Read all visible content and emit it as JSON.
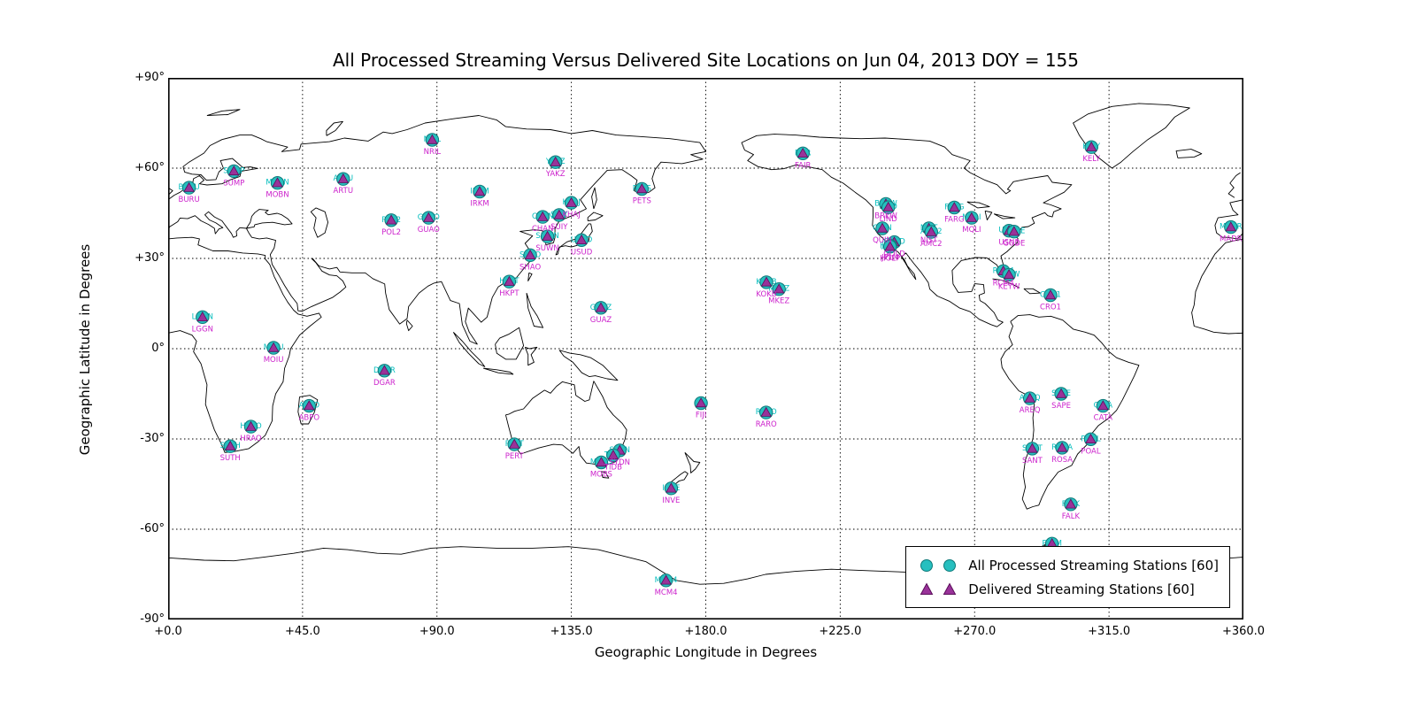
{
  "chart_data": {
    "type": "scatter",
    "title": "All Processed Streaming Versus Delivered Site Locations on Jun 04, 2013 DOY = 155",
    "xlabel": "Geographic Longitude in Degrees",
    "ylabel": "Geographic Latitude in Degrees",
    "xlim": [
      0,
      360
    ],
    "ylim": [
      -90,
      90
    ],
    "grid": "dotted",
    "xticks": {
      "values": [
        0,
        45,
        90,
        135,
        180,
        225,
        270,
        315,
        360
      ],
      "labels": [
        "+0.0",
        "+45.0",
        "+90.0",
        "+135.0",
        "+180.0",
        "+225.0",
        "+270.0",
        "+315.0",
        "+360.0"
      ]
    },
    "yticks": {
      "values": [
        90,
        60,
        30,
        0,
        -30,
        -60,
        -90
      ],
      "labels": [
        "+90°",
        "+60°",
        "+30°",
        "0°",
        "-30°",
        "-60°",
        "-90°"
      ]
    },
    "colors": {
      "circle_fill": "#27bfbf",
      "circle_edge": "#0e7a7a",
      "triangle_fill": "#993299",
      "triangle_edge": "#5a0e5a",
      "label_top": "#00bdbd",
      "label_bottom": "#cc22cc",
      "coastline": "#000000"
    },
    "legend": {
      "position": "lower right",
      "items": [
        {
          "label": "All Processed Streaming Stations [60]",
          "marker": "circle",
          "color": "#27bfbf"
        },
        {
          "label": "Delivered Streaming Stations [60]",
          "marker": "triangle",
          "color": "#993299"
        }
      ]
    },
    "stations": [
      {
        "name": "BURU",
        "lon": 7.0,
        "lat": 53.5
      },
      {
        "name": "SUMP",
        "lon": 22.0,
        "lat": 59.0
      },
      {
        "name": "MOBN",
        "lon": 36.6,
        "lat": 55.1
      },
      {
        "name": "ARTU",
        "lon": 58.6,
        "lat": 56.4
      },
      {
        "name": "NRIL",
        "lon": 88.4,
        "lat": 69.4
      },
      {
        "name": "POL2",
        "lon": 74.7,
        "lat": 42.7
      },
      {
        "name": "GUAO",
        "lon": 87.2,
        "lat": 43.5
      },
      {
        "name": "IRKM",
        "lon": 104.3,
        "lat": 52.2
      },
      {
        "name": "YAKZ",
        "lon": 129.7,
        "lat": 62.0
      },
      {
        "name": "PETS",
        "lon": 158.6,
        "lat": 53.1
      },
      {
        "name": "KHAJ",
        "lon": 135.0,
        "lat": 48.5
      },
      {
        "name": "CHAN",
        "lon": 125.4,
        "lat": 43.8
      },
      {
        "name": "SUIY",
        "lon": 130.9,
        "lat": 44.4
      },
      {
        "name": "SUWN",
        "lon": 127.0,
        "lat": 37.3
      },
      {
        "name": "USUD",
        "lon": 138.4,
        "lat": 36.1
      },
      {
        "name": "SHAO",
        "lon": 121.2,
        "lat": 31.1
      },
      {
        "name": "HKPT",
        "lon": 114.2,
        "lat": 22.3
      },
      {
        "name": "GUAZ",
        "lon": 144.9,
        "lat": 13.6
      },
      {
        "name": "LGGN",
        "lon": 11.5,
        "lat": 10.5
      },
      {
        "name": "MOIU",
        "lon": 35.3,
        "lat": 0.3
      },
      {
        "name": "DGAR",
        "lon": 72.4,
        "lat": -7.3
      },
      {
        "name": "ABPO",
        "lon": 47.2,
        "lat": -19.0
      },
      {
        "name": "HRAO",
        "lon": 27.7,
        "lat": -25.9
      },
      {
        "name": "SUTH",
        "lon": 20.8,
        "lat": -32.4
      },
      {
        "name": "PERT",
        "lon": 115.9,
        "lat": -31.8
      },
      {
        "name": "MOBS",
        "lon": 145.0,
        "lat": -37.8
      },
      {
        "name": "SYDN",
        "lon": 151.2,
        "lat": -33.8
      },
      {
        "name": "TIDB",
        "lon": 149.0,
        "lat": -35.4
      },
      {
        "name": "INVE",
        "lon": 168.4,
        "lat": -46.4
      },
      {
        "name": "MCM4",
        "lon": 166.7,
        "lat": -77.0
      },
      {
        "name": "FIJI",
        "lon": 178.4,
        "lat": -18.1
      },
      {
        "name": "RARO",
        "lon": 200.2,
        "lat": -21.2
      },
      {
        "name": "KOKB",
        "lon": 200.3,
        "lat": 22.1
      },
      {
        "name": "MKEZ",
        "lon": 204.5,
        "lat": 19.8
      },
      {
        "name": "FAIR",
        "lon": 212.5,
        "lat": 64.9
      },
      {
        "name": "BREW",
        "lon": 240.3,
        "lat": 48.1
      },
      {
        "name": "LIND",
        "lon": 241.1,
        "lat": 47.0
      },
      {
        "name": "QUIN",
        "lon": 239.1,
        "lat": 40.0
      },
      {
        "name": "GOLD",
        "lon": 243.1,
        "lat": 35.4
      },
      {
        "name": "JPLM",
        "lon": 241.8,
        "lat": 34.2
      },
      {
        "name": "HOLP",
        "lon": 241.7,
        "lat": 33.9
      },
      {
        "name": "NIST",
        "lon": 254.7,
        "lat": 40.0
      },
      {
        "name": "AMC2",
        "lon": 255.5,
        "lat": 38.8
      },
      {
        "name": "FARG",
        "lon": 263.2,
        "lat": 46.9
      },
      {
        "name": "MQLI",
        "lon": 269.0,
        "lat": 43.5
      },
      {
        "name": "USN3",
        "lon": 281.5,
        "lat": 39.2
      },
      {
        "name": "GODE",
        "lon": 283.2,
        "lat": 38.9
      },
      {
        "name": "RCM4",
        "lon": 279.6,
        "lat": 25.8
      },
      {
        "name": "KEYW",
        "lon": 281.5,
        "lat": 24.6
      },
      {
        "name": "CRO1",
        "lon": 295.4,
        "lat": 17.8
      },
      {
        "name": "AREQ",
        "lon": 288.5,
        "lat": -16.5
      },
      {
        "name": "SAPE",
        "lon": 299.0,
        "lat": -15.0
      },
      {
        "name": "CATA",
        "lon": 313.0,
        "lat": -19.0
      },
      {
        "name": "SANT",
        "lon": 289.3,
        "lat": -33.2
      },
      {
        "name": "ROSA",
        "lon": 299.3,
        "lat": -32.9
      },
      {
        "name": "POAL",
        "lon": 308.9,
        "lat": -30.1
      },
      {
        "name": "FALK",
        "lon": 302.2,
        "lat": -51.7
      },
      {
        "name": "PALM",
        "lon": 295.9,
        "lat": -64.8
      },
      {
        "name": "KELY",
        "lon": 309.1,
        "lat": 67.0
      },
      {
        "name": "MADR",
        "lon": 355.8,
        "lat": 40.4
      }
    ]
  }
}
